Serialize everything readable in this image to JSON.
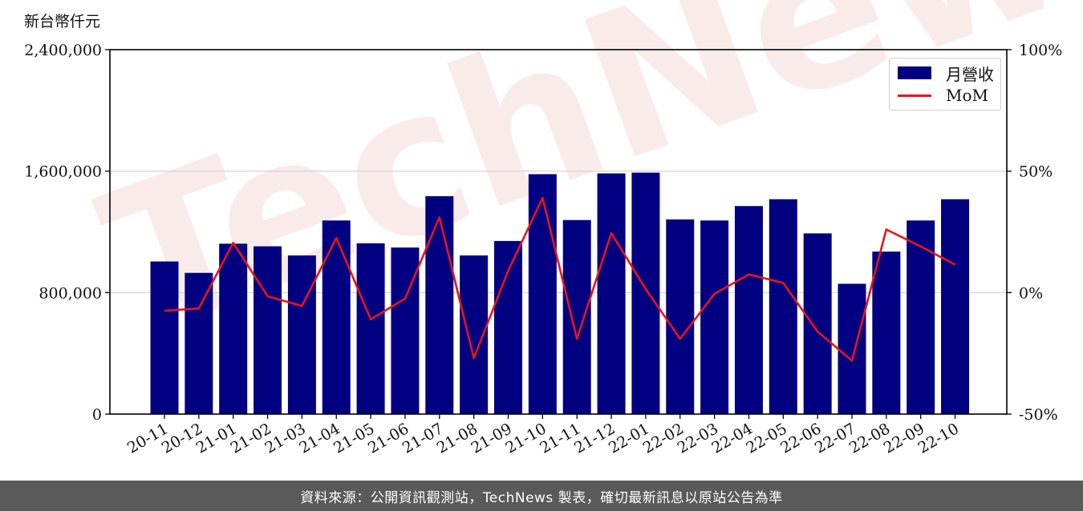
{
  "chart_data": {
    "type": "bar+line",
    "y_unit_label": "新台幣仟元",
    "categories": [
      "20-11",
      "20-12",
      "21-01",
      "21-02",
      "21-03",
      "21-04",
      "21-05",
      "21-06",
      "21-07",
      "21-08",
      "21-09",
      "21-10",
      "21-11",
      "21-12",
      "22-01",
      "22-02",
      "22-03",
      "22-04",
      "22-05",
      "22-06",
      "22-07",
      "22-08",
      "22-09",
      "22-10"
    ],
    "series": [
      {
        "name": "月營收",
        "type": "bar",
        "axis": "left",
        "color": "#000080",
        "values": [
          1005000,
          930000,
          1122000,
          1105000,
          1045000,
          1275000,
          1125000,
          1097000,
          1435000,
          1045000,
          1140000,
          1580000,
          1278000,
          1585000,
          1590000,
          1282000,
          1275000,
          1370000,
          1415000,
          1190000,
          858000,
          1070000,
          1275000,
          1415000
        ]
      },
      {
        "name": "MoM",
        "type": "line",
        "axis": "right",
        "color": "#e8141a",
        "values": [
          -7.5,
          -6.5,
          20.5,
          -1.5,
          -5.5,
          22.5,
          -11.0,
          -2.5,
          31.0,
          -27.0,
          9.0,
          39.0,
          -19.0,
          24.5,
          1.5,
          -19.0,
          -0.5,
          7.5,
          4.0,
          -16.0,
          -28.0,
          26.0,
          19.0,
          11.5
        ]
      }
    ],
    "left_axis": {
      "ylim": [
        0,
        2400000
      ],
      "ticks": [
        "0",
        "800,000",
        "1,600,000",
        "2,400,000"
      ]
    },
    "right_axis": {
      "ylim": [
        -50,
        100
      ],
      "ticks": [
        "-50%",
        "0%",
        "50%",
        "100%"
      ]
    },
    "grid": "horizontal",
    "legend_position": "top-right",
    "watermark": "TechNews"
  },
  "footer": {
    "source_text": "資料來源：公開資訊觀測站，TechNews 製表，確切最新訊息以原站公告為準"
  }
}
